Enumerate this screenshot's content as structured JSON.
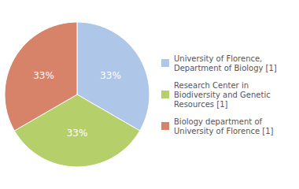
{
  "chart_data": {
    "type": "pie",
    "categories": [
      "University of Florence,\nDepartment of Biology [1]",
      "Research Center in\nBiodiversity and Genetic\nResources [1]",
      "Biology department of\nUniversity of Florence [1]"
    ],
    "values": [
      33,
      33,
      33
    ],
    "value_labels": [
      "33%",
      "33%",
      "33%"
    ],
    "colors": [
      "#aec6e8",
      "#b5cf6b",
      "#d6836a"
    ],
    "data_labels": true,
    "legend": "right"
  }
}
